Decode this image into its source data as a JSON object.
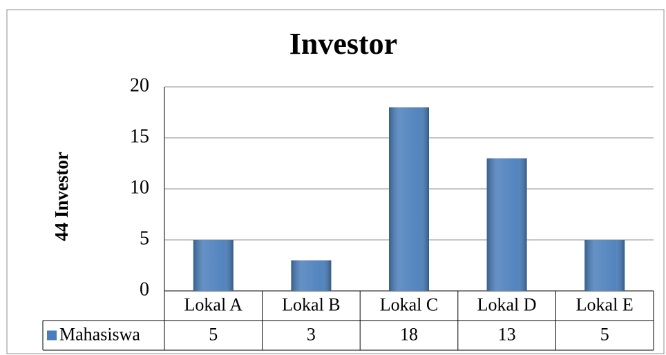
{
  "chart_data": {
    "type": "bar",
    "title": "Investor",
    "y_label": "44 Investor",
    "categories": [
      "Lokal A",
      "Lokal B",
      "Lokal C",
      "Lokal D",
      "Lokal E"
    ],
    "series": [
      {
        "name": "Mahasiswa",
        "color": "#4a7ebb",
        "values": [
          5,
          3,
          18,
          13,
          5
        ]
      }
    ],
    "ylim": [
      0,
      20
    ],
    "yticks": [
      0,
      5,
      10,
      15,
      20
    ],
    "grid": true,
    "data_table": true
  }
}
